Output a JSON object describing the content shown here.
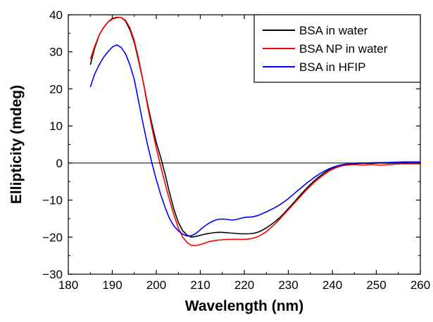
{
  "chart_data": {
    "type": "line",
    "xlabel": "Wavelength (nm)",
    "ylabel": "Ellipticity (mdeg)",
    "xlim": [
      180,
      260
    ],
    "ylim": [
      -30,
      40
    ],
    "xticks": [
      180,
      190,
      200,
      210,
      220,
      230,
      240,
      250,
      260
    ],
    "yticks": [
      -30,
      -20,
      -10,
      0,
      10,
      20,
      30,
      40
    ],
    "xtick_labels": [
      "180",
      "190",
      "200",
      "210",
      "220",
      "230",
      "240",
      "250",
      "260"
    ],
    "ytick_labels": [
      "−30",
      "−20",
      "−10",
      "0",
      "10",
      "20",
      "30",
      "40"
    ],
    "zero_line": true,
    "grid": false,
    "legend_position": "top-right",
    "series": [
      {
        "name": "BSA in water",
        "color": "#000000",
        "points": [
          [
            185,
            26.5
          ],
          [
            186,
            31
          ],
          [
            187,
            34.5
          ],
          [
            188,
            36.5
          ],
          [
            189,
            38
          ],
          [
            190,
            39
          ],
          [
            191,
            39.3
          ],
          [
            192,
            39.3
          ],
          [
            193,
            38.3
          ],
          [
            194,
            36
          ],
          [
            195,
            32.5
          ],
          [
            196,
            27.5
          ],
          [
            197,
            22
          ],
          [
            198,
            16
          ],
          [
            199,
            10.5
          ],
          [
            200,
            5.5
          ],
          [
            201,
            1.5
          ],
          [
            202,
            -3
          ],
          [
            203,
            -8
          ],
          [
            204,
            -12.5
          ],
          [
            205,
            -16
          ],
          [
            206,
            -18.3
          ],
          [
            207,
            -19.5
          ],
          [
            208,
            -20
          ],
          [
            209,
            -19.8
          ],
          [
            210,
            -19.5
          ],
          [
            211,
            -19.2
          ],
          [
            212,
            -19
          ],
          [
            213,
            -18.8
          ],
          [
            214,
            -18.7
          ],
          [
            215,
            -18.7
          ],
          [
            216,
            -18.8
          ],
          [
            217,
            -18.9
          ],
          [
            218,
            -19
          ],
          [
            219,
            -19.1
          ],
          [
            220,
            -19.1
          ],
          [
            221,
            -19.1
          ],
          [
            222,
            -19
          ],
          [
            223,
            -18.7
          ],
          [
            224,
            -18.2
          ],
          [
            225,
            -17.5
          ],
          [
            226,
            -16.7
          ],
          [
            227,
            -15.8
          ],
          [
            228,
            -14.8
          ],
          [
            229,
            -13.6
          ],
          [
            230,
            -12.3
          ],
          [
            231,
            -11
          ],
          [
            232,
            -9.6
          ],
          [
            233,
            -8.3
          ],
          [
            234,
            -7
          ],
          [
            235,
            -5.8
          ],
          [
            236,
            -4.7
          ],
          [
            237,
            -3.7
          ],
          [
            238,
            -2.8
          ],
          [
            239,
            -2
          ],
          [
            240,
            -1.4
          ],
          [
            241,
            -0.9
          ],
          [
            242,
            -0.6
          ],
          [
            243,
            -0.4
          ],
          [
            244,
            -0.3
          ],
          [
            245,
            -0.2
          ],
          [
            246,
            -0.1
          ],
          [
            248,
            -0.1
          ],
          [
            250,
            0
          ],
          [
            253,
            0
          ],
          [
            256,
            0.2
          ],
          [
            258,
            0.3
          ],
          [
            260,
            0.3
          ]
        ]
      },
      {
        "name": "BSA NP in water",
        "color": "#ff0000",
        "points": [
          [
            185,
            28
          ],
          [
            186,
            31.5
          ],
          [
            187,
            34.5
          ],
          [
            188,
            36.5
          ],
          [
            189,
            38
          ],
          [
            190,
            38.8
          ],
          [
            191,
            39.2
          ],
          [
            192,
            39.3
          ],
          [
            193,
            38.5
          ],
          [
            194,
            36.5
          ],
          [
            195,
            33
          ],
          [
            196,
            28
          ],
          [
            197,
            22
          ],
          [
            198,
            15.5
          ],
          [
            199,
            9.5
          ],
          [
            200,
            4
          ],
          [
            201,
            -1
          ],
          [
            202,
            -5.5
          ],
          [
            203,
            -10
          ],
          [
            204,
            -14
          ],
          [
            205,
            -17.5
          ],
          [
            206,
            -20
          ],
          [
            207,
            -21.5
          ],
          [
            208,
            -22.2
          ],
          [
            209,
            -22.3
          ],
          [
            210,
            -22
          ],
          [
            211,
            -21.6
          ],
          [
            212,
            -21.2
          ],
          [
            213,
            -21
          ],
          [
            214,
            -20.8
          ],
          [
            215,
            -20.7
          ],
          [
            216,
            -20.6
          ],
          [
            217,
            -20.6
          ],
          [
            218,
            -20.6
          ],
          [
            219,
            -20.6
          ],
          [
            220,
            -20.6
          ],
          [
            221,
            -20.5
          ],
          [
            222,
            -20.3
          ],
          [
            223,
            -19.9
          ],
          [
            224,
            -19.3
          ],
          [
            225,
            -18.5
          ],
          [
            226,
            -17.5
          ],
          [
            227,
            -16.4
          ],
          [
            228,
            -15.2
          ],
          [
            229,
            -13.9
          ],
          [
            230,
            -12.6
          ],
          [
            231,
            -11.3
          ],
          [
            232,
            -10
          ],
          [
            233,
            -8.7
          ],
          [
            234,
            -7.4
          ],
          [
            235,
            -6.2
          ],
          [
            236,
            -5.1
          ],
          [
            237,
            -4.1
          ],
          [
            238,
            -3.2
          ],
          [
            239,
            -2.4
          ],
          [
            240,
            -1.7
          ],
          [
            241,
            -1.2
          ],
          [
            242,
            -0.8
          ],
          [
            243,
            -0.6
          ],
          [
            244,
            -0.5
          ],
          [
            245,
            -0.4
          ],
          [
            246,
            -0.5
          ],
          [
            247,
            -0.6
          ],
          [
            248,
            -0.5
          ],
          [
            249,
            -0.4
          ],
          [
            250,
            -0.5
          ],
          [
            251,
            -0.6
          ],
          [
            252,
            -0.5
          ],
          [
            253,
            -0.4
          ],
          [
            254,
            -0.3
          ],
          [
            256,
            -0.2
          ],
          [
            258,
            -0.2
          ],
          [
            260,
            -0.2
          ]
        ]
      },
      {
        "name": "BSA in HFIP",
        "color": "#0000ff",
        "points": [
          [
            185,
            20.5
          ],
          [
            186,
            24
          ],
          [
            187,
            26.5
          ],
          [
            188,
            28.5
          ],
          [
            189,
            30
          ],
          [
            190,
            31.3
          ],
          [
            191,
            31.9
          ],
          [
            192,
            31.2
          ],
          [
            193,
            29.5
          ],
          [
            194,
            26.5
          ],
          [
            195,
            22.5
          ],
          [
            196,
            16.5
          ],
          [
            197,
            10.5
          ],
          [
            198,
            5
          ],
          [
            199,
            0
          ],
          [
            200,
            -4.5
          ],
          [
            201,
            -8.5
          ],
          [
            202,
            -12
          ],
          [
            203,
            -15
          ],
          [
            204,
            -17
          ],
          [
            205,
            -18.3
          ],
          [
            206,
            -19.2
          ],
          [
            207,
            -19.7
          ],
          [
            208,
            -19.6
          ],
          [
            209,
            -19
          ],
          [
            210,
            -18
          ],
          [
            211,
            -17
          ],
          [
            212,
            -16.2
          ],
          [
            213,
            -15.6
          ],
          [
            214,
            -15.2
          ],
          [
            215,
            -15.1
          ],
          [
            216,
            -15.2
          ],
          [
            217,
            -15.4
          ],
          [
            218,
            -15.3
          ],
          [
            219,
            -15
          ],
          [
            220,
            -14.7
          ],
          [
            221,
            -14.6
          ],
          [
            222,
            -14.5
          ],
          [
            223,
            -14.2
          ],
          [
            224,
            -13.7
          ],
          [
            225,
            -13.2
          ],
          [
            226,
            -12.6
          ],
          [
            227,
            -12
          ],
          [
            228,
            -11.3
          ],
          [
            229,
            -10.5
          ],
          [
            230,
            -9.6
          ],
          [
            231,
            -8.6
          ],
          [
            232,
            -7.6
          ],
          [
            233,
            -6.6
          ],
          [
            234,
            -5.6
          ],
          [
            235,
            -4.7
          ],
          [
            236,
            -3.8
          ],
          [
            237,
            -3
          ],
          [
            238,
            -2.3
          ],
          [
            239,
            -1.7
          ],
          [
            240,
            -1.2
          ],
          [
            241,
            -0.8
          ],
          [
            242,
            -0.5
          ],
          [
            243,
            -0.3
          ],
          [
            244,
            -0.2
          ],
          [
            245,
            -0.1
          ],
          [
            246,
            0
          ],
          [
            248,
            0
          ],
          [
            250,
            0.1
          ],
          [
            252,
            0.1
          ],
          [
            254,
            0.2
          ],
          [
            256,
            0.3
          ],
          [
            258,
            0.3
          ],
          [
            260,
            0.3
          ]
        ]
      }
    ]
  }
}
